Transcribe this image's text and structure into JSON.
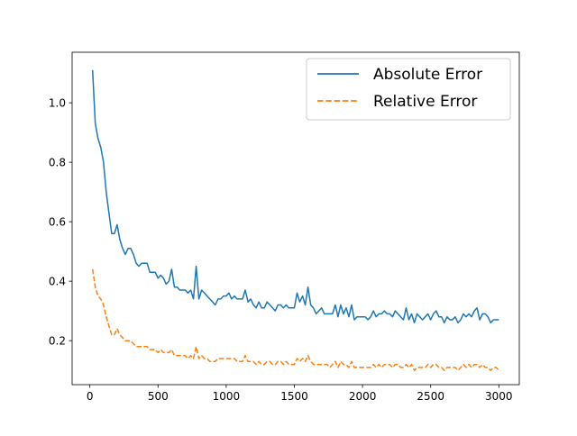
{
  "chart_data": {
    "type": "line",
    "title": "",
    "xlabel": "",
    "ylabel": "",
    "xlim": [
      -130,
      3150
    ],
    "ylim": [
      0.052,
      1.17
    ],
    "xticks": [
      0,
      500,
      1000,
      1500,
      2000,
      2500,
      3000
    ],
    "xtick_labels": [
      "0",
      "500",
      "1000",
      "1500",
      "2000",
      "2500",
      "3000"
    ],
    "yticks": [
      0.2,
      0.4,
      0.6,
      0.8,
      1.0
    ],
    "ytick_labels": [
      "0.2",
      "0.4",
      "0.6",
      "0.8",
      "1.0"
    ],
    "grid": false,
    "legend_position": "top-right",
    "x": [
      20,
      40,
      60,
      80,
      100,
      120,
      140,
      160,
      180,
      200,
      220,
      240,
      260,
      280,
      300,
      320,
      340,
      360,
      380,
      400,
      420,
      440,
      460,
      480,
      500,
      520,
      540,
      560,
      580,
      600,
      620,
      640,
      660,
      680,
      700,
      720,
      740,
      760,
      780,
      800,
      820,
      840,
      860,
      880,
      900,
      920,
      940,
      960,
      980,
      1000,
      1020,
      1040,
      1060,
      1080,
      1100,
      1120,
      1140,
      1160,
      1180,
      1200,
      1220,
      1240,
      1260,
      1280,
      1300,
      1320,
      1340,
      1360,
      1380,
      1400,
      1420,
      1440,
      1460,
      1480,
      1500,
      1520,
      1540,
      1560,
      1580,
      1600,
      1620,
      1640,
      1660,
      1680,
      1700,
      1720,
      1740,
      1760,
      1780,
      1800,
      1820,
      1840,
      1860,
      1880,
      1900,
      1920,
      1940,
      1960,
      1980,
      2000,
      2020,
      2040,
      2060,
      2080,
      2100,
      2120,
      2140,
      2160,
      2180,
      2200,
      2220,
      2240,
      2260,
      2280,
      2300,
      2320,
      2340,
      2360,
      2380,
      2400,
      2420,
      2440,
      2460,
      2480,
      2500,
      2520,
      2540,
      2560,
      2580,
      2600,
      2620,
      2640,
      2660,
      2680,
      2700,
      2720,
      2740,
      2760,
      2780,
      2800,
      2820,
      2840,
      2860,
      2880,
      2900,
      2920,
      2940,
      2960,
      2980,
      3000
    ],
    "series": [
      {
        "name": "Absolute Error",
        "color": "#1f77b4",
        "dash": "solid",
        "values": [
          1.11,
          0.93,
          0.88,
          0.85,
          0.8,
          0.7,
          0.63,
          0.56,
          0.56,
          0.59,
          0.54,
          0.51,
          0.49,
          0.51,
          0.51,
          0.49,
          0.46,
          0.45,
          0.46,
          0.46,
          0.46,
          0.43,
          0.43,
          0.43,
          0.41,
          0.42,
          0.41,
          0.39,
          0.4,
          0.44,
          0.38,
          0.38,
          0.37,
          0.37,
          0.37,
          0.36,
          0.37,
          0.34,
          0.45,
          0.34,
          0.37,
          0.36,
          0.35,
          0.34,
          0.33,
          0.32,
          0.34,
          0.34,
          0.35,
          0.35,
          0.36,
          0.34,
          0.35,
          0.34,
          0.34,
          0.34,
          0.37,
          0.33,
          0.34,
          0.32,
          0.31,
          0.33,
          0.31,
          0.31,
          0.33,
          0.32,
          0.31,
          0.3,
          0.32,
          0.32,
          0.31,
          0.32,
          0.31,
          0.31,
          0.31,
          0.36,
          0.33,
          0.35,
          0.32,
          0.38,
          0.32,
          0.31,
          0.29,
          0.3,
          0.31,
          0.29,
          0.29,
          0.29,
          0.29,
          0.32,
          0.28,
          0.32,
          0.29,
          0.31,
          0.28,
          0.32,
          0.27,
          0.28,
          0.28,
          0.28,
          0.28,
          0.27,
          0.28,
          0.3,
          0.28,
          0.29,
          0.29,
          0.3,
          0.29,
          0.29,
          0.28,
          0.3,
          0.29,
          0.28,
          0.27,
          0.31,
          0.27,
          0.29,
          0.26,
          0.29,
          0.28,
          0.27,
          0.28,
          0.29,
          0.27,
          0.29,
          0.3,
          0.28,
          0.28,
          0.26,
          0.28,
          0.27,
          0.27,
          0.28,
          0.26,
          0.27,
          0.29,
          0.28,
          0.29,
          0.28,
          0.3,
          0.31,
          0.27,
          0.29,
          0.29,
          0.28,
          0.26,
          0.27,
          0.27,
          0.27
        ]
      },
      {
        "name": "Relative Error",
        "color": "#ff7f0e",
        "dash": "dashed",
        "values": [
          0.44,
          0.38,
          0.35,
          0.34,
          0.32,
          0.28,
          0.25,
          0.22,
          0.22,
          0.24,
          0.22,
          0.21,
          0.2,
          0.2,
          0.2,
          0.19,
          0.18,
          0.18,
          0.18,
          0.18,
          0.18,
          0.17,
          0.17,
          0.17,
          0.16,
          0.17,
          0.16,
          0.16,
          0.16,
          0.17,
          0.15,
          0.15,
          0.15,
          0.15,
          0.15,
          0.14,
          0.15,
          0.14,
          0.18,
          0.14,
          0.15,
          0.14,
          0.14,
          0.13,
          0.13,
          0.13,
          0.14,
          0.14,
          0.14,
          0.14,
          0.14,
          0.14,
          0.14,
          0.13,
          0.13,
          0.13,
          0.15,
          0.13,
          0.13,
          0.13,
          0.12,
          0.13,
          0.12,
          0.12,
          0.13,
          0.13,
          0.12,
          0.12,
          0.13,
          0.13,
          0.12,
          0.13,
          0.12,
          0.12,
          0.12,
          0.14,
          0.13,
          0.14,
          0.13,
          0.15,
          0.13,
          0.12,
          0.12,
          0.12,
          0.12,
          0.12,
          0.12,
          0.11,
          0.12,
          0.13,
          0.11,
          0.13,
          0.12,
          0.12,
          0.11,
          0.13,
          0.11,
          0.11,
          0.11,
          0.11,
          0.11,
          0.11,
          0.11,
          0.12,
          0.11,
          0.12,
          0.11,
          0.12,
          0.12,
          0.12,
          0.11,
          0.12,
          0.12,
          0.11,
          0.11,
          0.12,
          0.11,
          0.12,
          0.1,
          0.11,
          0.11,
          0.11,
          0.11,
          0.12,
          0.11,
          0.12,
          0.12,
          0.11,
          0.11,
          0.1,
          0.11,
          0.11,
          0.11,
          0.11,
          0.1,
          0.11,
          0.12,
          0.11,
          0.12,
          0.11,
          0.12,
          0.12,
          0.11,
          0.12,
          0.11,
          0.11,
          0.1,
          0.11,
          0.11,
          0.1
        ]
      }
    ]
  }
}
